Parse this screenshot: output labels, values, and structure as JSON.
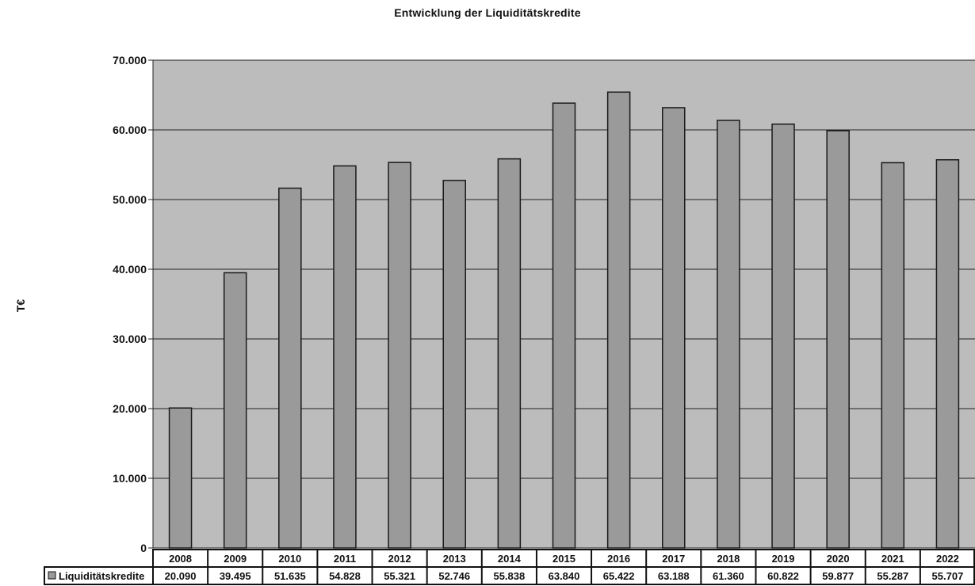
{
  "chart_data": {
    "type": "bar",
    "title": "Entwicklung der Liquiditätskredite",
    "ylabel": "T€",
    "xlabel": "",
    "ylim": [
      0,
      70000
    ],
    "yticks": [
      "0",
      "10.000",
      "20.000",
      "30.000",
      "40.000",
      "50.000",
      "60.000",
      "70.000"
    ],
    "categories": [
      "2008",
      "2009",
      "2010",
      "2011",
      "2012",
      "2013",
      "2014",
      "2015",
      "2016",
      "2017",
      "2018",
      "2019",
      "2020",
      "2021",
      "2022"
    ],
    "grid": true,
    "legend": "data-table",
    "colors": {
      "plot_background": "#bcbcbc",
      "bar_fill": "#9a9a9a",
      "bar_stroke": "#1a1a1a"
    },
    "series": [
      {
        "name": "Liquiditätskredite",
        "values": [
          20090,
          39495,
          51635,
          54828,
          55321,
          52746,
          55838,
          63840,
          65422,
          63188,
          61360,
          60822,
          59877,
          55287,
          55707
        ],
        "labels": [
          "20.090",
          "39.495",
          "51.635",
          "54.828",
          "55.321",
          "52.746",
          "55.838",
          "63.840",
          "65.422",
          "63.188",
          "61.360",
          "60.822",
          "59.877",
          "55.287",
          "55.707"
        ]
      }
    ]
  }
}
